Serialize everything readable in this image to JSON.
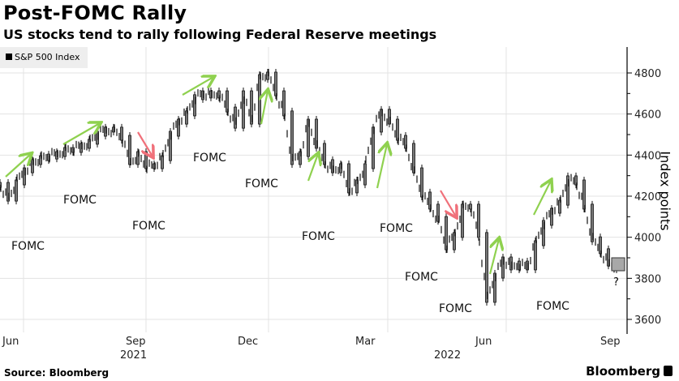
{
  "header": {
    "title": "Post-FOMC Rally",
    "subtitle": "US stocks tend to rally following Federal Reserve meetings"
  },
  "legend": {
    "label": "S&P 500 Index"
  },
  "footer": {
    "source": "Source: Bloomberg",
    "brand": "Bloomberg"
  },
  "colors": {
    "up_arrow": "#8fd14f",
    "down_arrow": "#f0707a",
    "series": "#111111",
    "grid": "#e3e3e3",
    "box": "#a8a8a8"
  },
  "chart_data": {
    "type": "line",
    "title": "Post-FOMC Rally",
    "subtitle": "US stocks tend to rally following Federal Reserve meetings",
    "ylabel": "Index points",
    "ylim": [
      3600,
      4800
    ],
    "yticks": [
      3600,
      3800,
      4000,
      4200,
      4400,
      4600,
      4800
    ],
    "yticklabels": [
      "3600",
      "3800",
      "4000",
      "4200",
      "4400",
      "4600",
      "4800"
    ],
    "xticklabels": [
      "Jun",
      "Sep",
      "Dec",
      "Mar",
      "Jun",
      "Sep"
    ],
    "year_labels": [
      "2021",
      "2022"
    ],
    "grid": true,
    "legend": "top-left",
    "series": [
      {
        "name": "S&P 500 Index",
        "values": [
          4255,
          4188,
          4267,
          4326,
          4366,
          4385,
          4393,
          4405,
          4425,
          4425,
          4445,
          4465,
          4504,
          4524,
          4524,
          4484,
          4366,
          4405,
          4346,
          4346,
          4385,
          4504,
          4563,
          4603,
          4682,
          4701,
          4690,
          4701,
          4622,
          4543,
          4701,
          4563,
          4780,
          4792,
          4701,
          4603,
          4366,
          4405,
          4563,
          4445,
          4366,
          4326,
          4346,
          4228,
          4267,
          4346,
          4524,
          4611,
          4563,
          4484,
          4445,
          4326,
          4208,
          4149,
          4089,
          3951,
          4011,
          4149,
          4149,
          4011,
          3695,
          3813,
          3892,
          3853,
          3872,
          3853,
          3971,
          4070,
          4129,
          4168,
          4287,
          4267,
          4149,
          3990,
          3932,
          3872,
          3853
        ]
      }
    ],
    "annotations": {
      "labels": [
        "FOMC",
        "FOMC",
        "FOMC",
        "FOMC",
        "FOMC",
        "FOMC",
        "FOMC",
        "FOMC",
        "FOMC",
        "FOMC"
      ],
      "question": "?",
      "projection_range": [
        3840,
        3900
      ]
    }
  }
}
